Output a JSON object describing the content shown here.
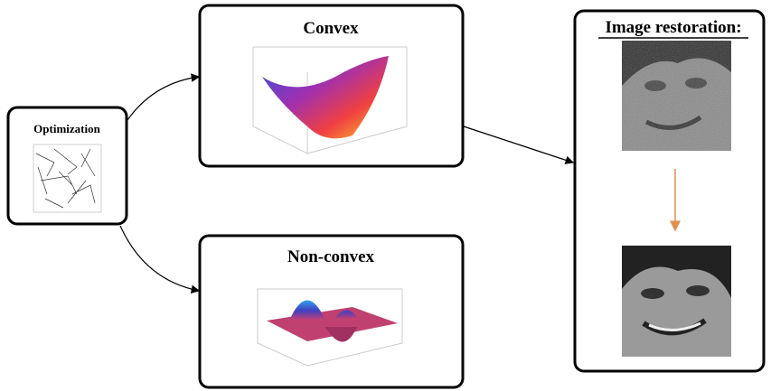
{
  "nodes": [
    {
      "label": "Optimization"
    },
    {
      "label": "Convex"
    },
    {
      "label": "Non-convex"
    },
    {
      "label": "Image restoration:"
    }
  ]
}
